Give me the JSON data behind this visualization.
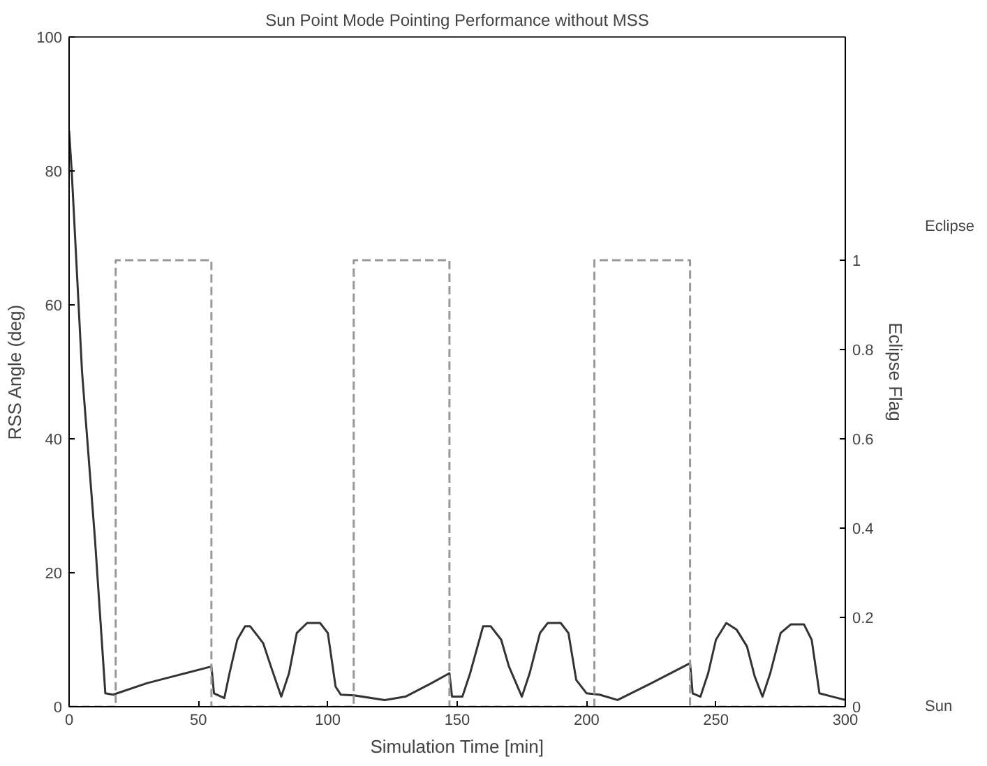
{
  "chart_data": {
    "type": "line",
    "title": "Sun Point Mode Pointing Performance without MSS",
    "xlabel": "Simulation Time [min]",
    "ylabel": "RSS Angle (deg)",
    "y2label": "Eclipse Flag",
    "xlim": [
      0,
      300
    ],
    "xticks": [
      0,
      50,
      100,
      150,
      200,
      250,
      300
    ],
    "ylim": [
      0,
      100
    ],
    "yticks": [
      0,
      20,
      40,
      60,
      80,
      100
    ],
    "y2lim": [
      0,
      1.5
    ],
    "y2ticks": [
      0,
      0.2,
      0.4,
      0.6,
      0.8,
      1
    ],
    "grid": false,
    "annotations": [
      "Eclipse",
      "Sun"
    ],
    "series": [
      {
        "color": "#333333",
        "line_style": "solid",
        "x": [
          0,
          1,
          5,
          10,
          14,
          17,
          30,
          45,
          55,
          56,
          60,
          62,
          65,
          68,
          70,
          72,
          75,
          78,
          82,
          85,
          88,
          92,
          97,
          100,
          103,
          105,
          110,
          122,
          130,
          140,
          147,
          148,
          152,
          155,
          160,
          163,
          167,
          170,
          175,
          178,
          182,
          185,
          190,
          193,
          196,
          200,
          205,
          212,
          225,
          240,
          241,
          244,
          247,
          250,
          254,
          258,
          262,
          265,
          268,
          271,
          275,
          279,
          284,
          287,
          290,
          295,
          300
        ],
        "values": [
          86,
          80,
          50,
          25,
          2,
          1.8,
          3.5,
          5,
          6,
          2,
          1.3,
          5,
          10,
          12,
          12,
          11,
          9.5,
          6,
          1.5,
          5,
          11,
          12.5,
          12.5,
          11,
          3,
          1.8,
          1.7,
          1,
          1.5,
          3.5,
          5,
          1.5,
          1.5,
          5,
          12,
          12,
          10,
          6,
          1.5,
          5,
          11,
          12.5,
          12.5,
          11,
          4,
          2,
          1.8,
          1,
          3.5,
          6.5,
          2,
          1.5,
          5,
          10,
          12.5,
          11.5,
          9,
          4.5,
          1.5,
          5,
          11,
          12.3,
          12.3,
          10,
          2,
          1.5,
          1
        ]
      },
      {
        "color": "#999999",
        "line_style": "dashed",
        "axis": "y2",
        "type": "step",
        "x": [
          0,
          18,
          55,
          110,
          147,
          203,
          240,
          300
        ],
        "values": [
          0,
          1,
          0,
          1,
          0,
          1,
          0,
          0
        ]
      }
    ]
  }
}
